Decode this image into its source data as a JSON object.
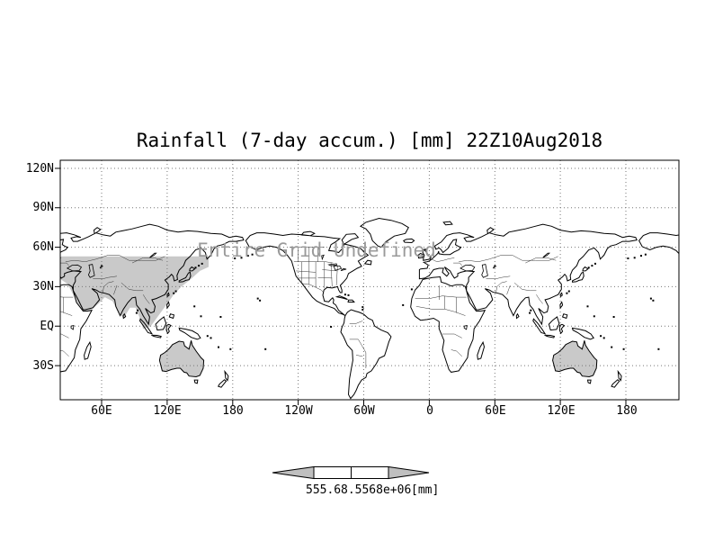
{
  "title": "Rainfall (7-day accum.) [mm] 22Z10Aug2018",
  "overlay_message": "Entire Grid Undefined",
  "axes": {
    "y": [
      "120N",
      "90N",
      "60N",
      "30N",
      "EQ",
      "30S"
    ],
    "x": [
      "60E",
      "120E",
      "180",
      "120W",
      "60W",
      "0",
      "60E",
      "120E",
      "180"
    ]
  },
  "colorbar": {
    "labels": [
      "555.6",
      "8.5568e+06"
    ],
    "units": "[mm]",
    "arrow_color": "#bfbfbf",
    "segment_color": "#ffffff"
  },
  "colors": {
    "shading": "#c9c9c9",
    "coastline": "#000000",
    "grid": "#777777",
    "message_text": "#9a9a9a",
    "background": "#ffffff"
  },
  "chart_data": {
    "type": "heatmap",
    "title": "Rainfall (7-day accum.) [mm] 22Z10Aug2018",
    "variable": "Rainfall (7-day accumulation)",
    "units": "mm",
    "valid_time": "22Z10Aug2018",
    "projection": "cylindrical lat-lon world map, longitude wrapped about 1.5 times",
    "y_tick_labels": [
      "120N",
      "90N",
      "60N",
      "30N",
      "EQ",
      "30S"
    ],
    "x_tick_labels": [
      "60E",
      "120E",
      "180",
      "120W",
      "60W",
      "0",
      "60E",
      "120E",
      "180"
    ],
    "grid": true,
    "annotation": "Entire Grid Undefined",
    "colorbar_tick_labels": [
      "555.6",
      "8.5568e+06"
    ],
    "legend_position": "bottom-center",
    "shaded_regions": [
      "central and eastern Asia (approx 22E-158E, 0N-53N)",
      "Australia (both map repetitions)"
    ]
  }
}
